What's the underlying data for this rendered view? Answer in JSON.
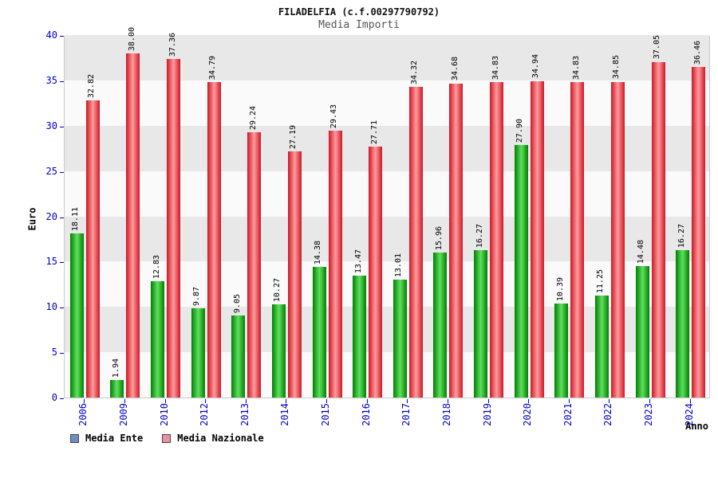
{
  "title": "FILADELFIA (c.f.00297790792)",
  "subtitle": "Media Importi",
  "legend": [
    {
      "label": "Media Ente",
      "color": "#6d8fc4"
    },
    {
      "label": "Media Nazionale",
      "color": "#ef8fa3"
    }
  ],
  "chart_data": {
    "type": "bar",
    "title": "FILADELFIA (c.f.00297790792)",
    "subtitle": "Media Importi",
    "xlabel": "Anno",
    "ylabel": "Euro",
    "ylim": [
      0,
      40
    ],
    "yticks": [
      0,
      5,
      10,
      15,
      20,
      25,
      30,
      35,
      40
    ],
    "grid": "horizontal-bands",
    "band_colors": {
      "dark": "#e8e8e8",
      "light": "#fafafa"
    },
    "legend_position": "bottom",
    "categories": [
      "2006",
      "2009",
      "2010",
      "2012",
      "2013",
      "2014",
      "2015",
      "2016",
      "2017",
      "2018",
      "2019",
      "2020",
      "2021",
      "2022",
      "2023",
      "2024"
    ],
    "series": [
      {
        "name": "Media Ente",
        "bar_edge_color": "#007f00",
        "bar_mid_color": "#5fe05f",
        "values": [
          18.11,
          1.94,
          12.83,
          9.87,
          9.05,
          10.27,
          14.38,
          13.47,
          13.01,
          15.96,
          16.27,
          27.9,
          10.39,
          11.25,
          14.48,
          16.27
        ],
        "labels": [
          "18.11",
          "1.94",
          "12.83",
          "9.87",
          "9.05",
          "10.27",
          "14.38",
          "13.47",
          "13.01",
          "15.96",
          "16.27",
          "27.90",
          "10.39",
          "11.25",
          "14.48",
          "16.27"
        ]
      },
      {
        "name": "Media Nazionale",
        "bar_edge_color": "#cd1626",
        "bar_mid_color": "#ff9c9c",
        "values": [
          32.82,
          38.0,
          37.36,
          34.79,
          29.24,
          27.19,
          29.43,
          27.71,
          34.32,
          34.68,
          34.83,
          34.94,
          34.83,
          34.85,
          37.05,
          36.46
        ],
        "labels": [
          "32.82",
          "38.00",
          "37.36",
          "34.79",
          "29.24",
          "27.19",
          "29.43",
          "27.71",
          "34.32",
          "34.68",
          "34.83",
          "34.94",
          "34.83",
          "34.85",
          "37.05",
          "36.46"
        ]
      }
    ]
  }
}
